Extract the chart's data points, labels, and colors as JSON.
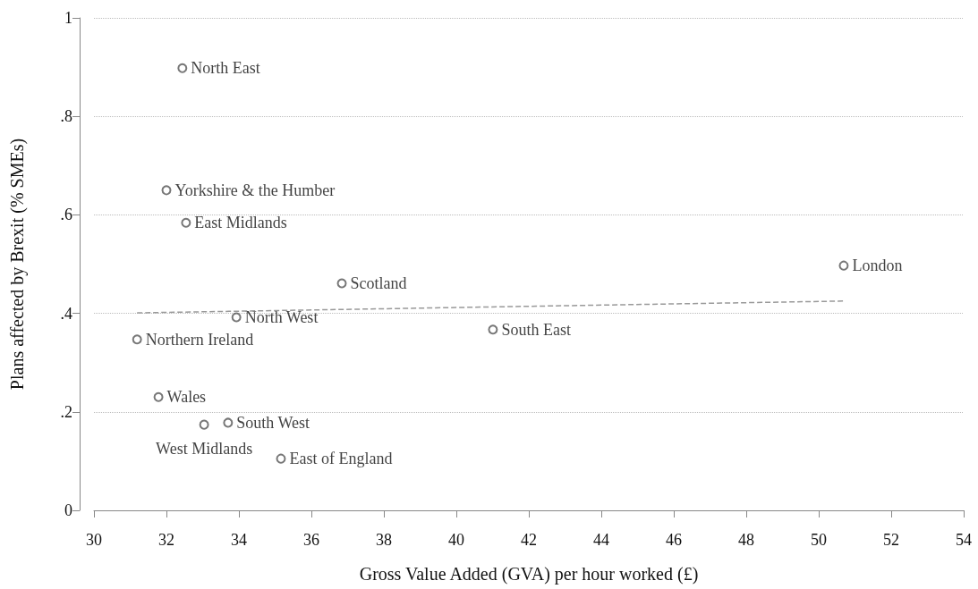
{
  "chart_data": {
    "type": "scatter",
    "xlabel": "Gross Value Added (GVA) per hour worked (£)",
    "ylabel": "Plans affected by Brexit (% SMEs)",
    "series": [
      {
        "name": "North East",
        "color": "#555555",
        "x": [
          32.44
        ],
        "values": [
          0.898
        ]
      },
      {
        "name": "Yorkshire & the Humber",
        "color": "#555555",
        "x": [
          32.0
        ],
        "values": [
          0.65
        ]
      },
      {
        "name": "East Midlands",
        "color": "#555555",
        "x": [
          32.54
        ],
        "values": [
          0.584
        ]
      },
      {
        "name": "London",
        "color": "#555555",
        "x": [
          50.69
        ],
        "values": [
          0.497
        ]
      },
      {
        "name": "Scotland",
        "color": "#555555",
        "x": [
          36.84
        ],
        "values": [
          0.461
        ]
      },
      {
        "name": "North West",
        "color": "#555555",
        "x": [
          33.93
        ],
        "values": [
          0.392
        ]
      },
      {
        "name": "South East",
        "color": "#555555",
        "x": [
          41.01
        ],
        "values": [
          0.367
        ]
      },
      {
        "name": "Northern Ireland",
        "color": "#555555",
        "x": [
          31.19
        ],
        "values": [
          0.347
        ]
      },
      {
        "name": "Wales",
        "color": "#555555",
        "x": [
          31.78
        ],
        "values": [
          0.23
        ]
      },
      {
        "name": "West Midlands",
        "color": "#555555",
        "x": [
          33.04
        ],
        "values": [
          0.174
        ]
      },
      {
        "name": "South West",
        "color": "#555555",
        "x": [
          33.7
        ],
        "values": [
          0.178
        ]
      },
      {
        "name": "East of England",
        "color": "#555555",
        "x": [
          35.16
        ],
        "values": [
          0.105
        ]
      },
      {
        "type": "line",
        "color": "#999999",
        "line_style": "dashed",
        "marker": "none",
        "x": [
          31.19,
          50.69
        ],
        "values": [
          0.401,
          0.425
        ]
      }
    ],
    "marker": "circle",
    "grid": "y",
    "legend": false,
    "xlim": [
      30,
      54
    ],
    "xticks": [
      30,
      32,
      34,
      36,
      38,
      40,
      42,
      44,
      46,
      48,
      50,
      52,
      54
    ],
    "ylim": [
      0,
      1
    ],
    "yticks": [
      0,
      {
        "value": 0.2,
        "label": ".2"
      },
      {
        "value": 0.4,
        "label": ".4"
      },
      {
        "value": 0.6,
        "label": ".6"
      },
      {
        "value": 0.8,
        "label": ".8"
      },
      1
    ]
  }
}
